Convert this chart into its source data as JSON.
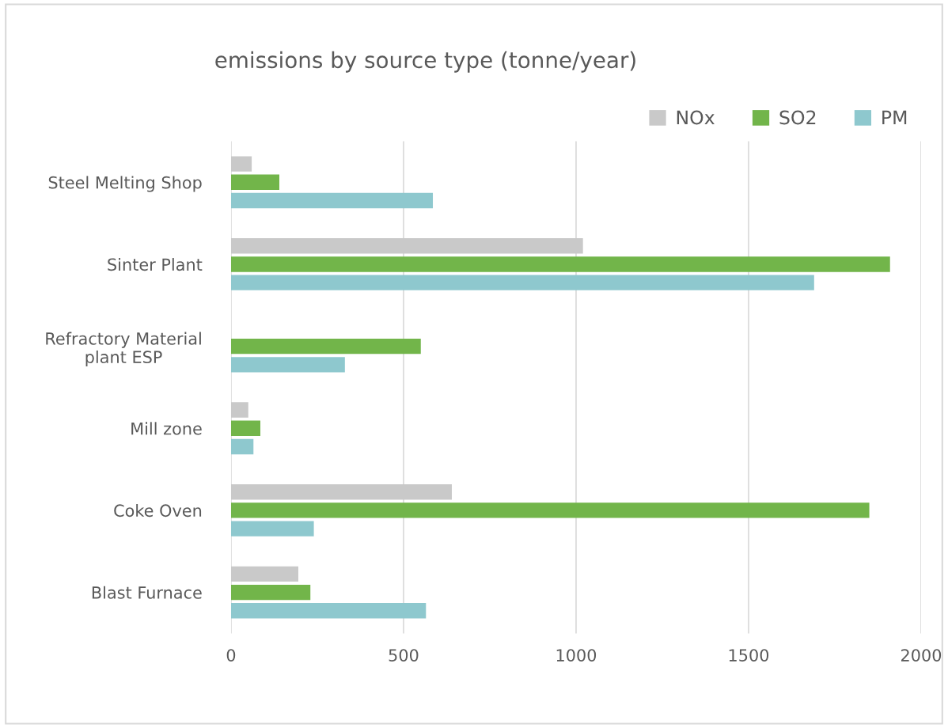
{
  "chart_data": {
    "type": "bar",
    "orientation": "horizontal",
    "title": "emissions by source type (tonne/year)",
    "categories": [
      "Steel Melting Shop",
      "Sinter Plant",
      "Refractory Material\nplant ESP",
      "Mill zone",
      "Coke Oven",
      "Blast Furnace"
    ],
    "series": [
      {
        "name": "NOx",
        "color": "#c9c9c9",
        "values": [
          60,
          1020,
          null,
          50,
          640,
          195
        ]
      },
      {
        "name": "SO2",
        "color": "#72b54a",
        "values": [
          140,
          1910,
          550,
          85,
          1850,
          230
        ]
      },
      {
        "name": "PM",
        "color": "#8ec8ce",
        "values": [
          585,
          1690,
          330,
          65,
          240,
          565
        ]
      }
    ],
    "xlim": [
      0,
      2000
    ],
    "xticks": [
      0,
      500,
      1000,
      1500,
      2000
    ],
    "grid": "x",
    "legend": "top right"
  }
}
